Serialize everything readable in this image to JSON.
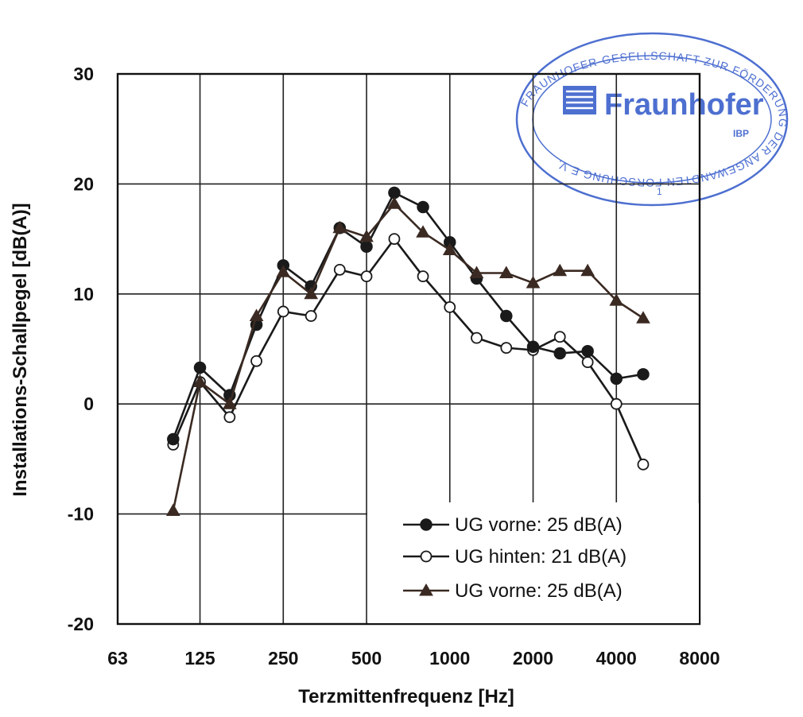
{
  "chart_data": {
    "type": "line",
    "title": "",
    "xlabel": "Terzmittenfrequenz [Hz]",
    "ylabel": "Installations-Schallpegel [dB(A)]",
    "x_scale": "log2",
    "xlim": [
      63,
      8000
    ],
    "ylim": [
      -20,
      30
    ],
    "x_ticks": [
      63,
      125,
      250,
      500,
      1000,
      2000,
      4000,
      8000
    ],
    "x_tick_labels": [
      "63",
      "125",
      "250",
      "500",
      "1000",
      "2000",
      "4000",
      "8000"
    ],
    "y_ticks": [
      -20,
      -10,
      0,
      10,
      20,
      30
    ],
    "y_tick_labels": [
      "-20",
      "-10",
      "0",
      "10",
      "20",
      "30"
    ],
    "grid": true,
    "legend_position": "bottom-right",
    "x": [
      100,
      125,
      160,
      200,
      250,
      315,
      400,
      500,
      630,
      800,
      1000,
      1250,
      1600,
      2000,
      2500,
      3150,
      4000,
      5000
    ],
    "series": [
      {
        "name": "UG vorne: 25 dB(A)",
        "marker": "filled-circle",
        "color": "#1a1a1a",
        "values": [
          -3.2,
          3.3,
          0.8,
          7.2,
          12.6,
          10.7,
          16.0,
          14.3,
          19.2,
          17.9,
          14.7,
          11.4,
          8.0,
          5.2,
          4.6,
          4.8,
          2.3,
          2.7
        ]
      },
      {
        "name": "UG hinten: 21 dB(A)",
        "marker": "open-circle",
        "color": "#1a1a1a",
        "values": [
          -3.7,
          2.0,
          -1.2,
          3.9,
          8.4,
          8.0,
          12.2,
          11.6,
          15.0,
          11.6,
          8.8,
          6.0,
          5.1,
          4.9,
          6.1,
          3.8,
          0.0,
          -5.5
        ]
      },
      {
        "name": "UG vorne: 25 dB(A)",
        "marker": "filled-triangle",
        "color": "#3a2a22",
        "values": [
          -9.7,
          2.0,
          0.0,
          8.0,
          12.0,
          10.0,
          16.0,
          15.2,
          18.2,
          15.6,
          14.0,
          11.9,
          11.9,
          11.0,
          12.1,
          12.1,
          9.4,
          7.8
        ]
      }
    ]
  },
  "stamp": {
    "brand": "Fraunhofer",
    "unit": "IBP",
    "ring_text": "FRAUNHOFER-GESELLSCHAFT ZUR FÖRDERUNG DER ANGEWANDTEN FORSCHUNG E.V.",
    "number": "1",
    "color": "#2f56c8"
  }
}
